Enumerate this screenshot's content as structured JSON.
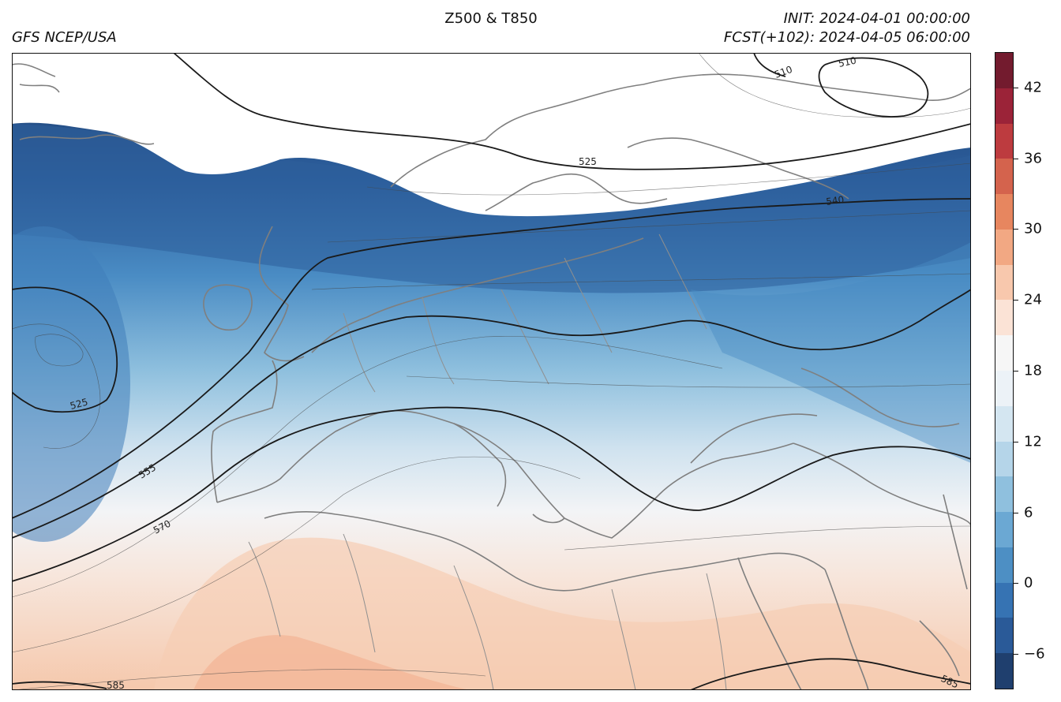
{
  "header": {
    "model": "GFS NCEP/USA",
    "title": "Z500 & T850",
    "init": "INIT: 2024-04-01 00:00:00",
    "forecast": "FCST(+102): 2024-04-05 06:00:00"
  },
  "colorbar": {
    "min": -9,
    "max": 45,
    "step": 1.5,
    "ticks": [
      "42",
      "36",
      "30",
      "24",
      "18",
      "12",
      "6",
      "0",
      "−6"
    ],
    "tick_values": [
      42,
      36,
      30,
      24,
      18,
      12,
      6,
      0,
      -6
    ],
    "colors_low_to_high": [
      "#1f3f6e",
      "#2a5a98",
      "#3673b3",
      "#4d8fc4",
      "#6ba8d3",
      "#8fc0de",
      "#b5d5e9",
      "#d4e6f1",
      "#ecf2f7",
      "#f6f6f6",
      "#fbe3d6",
      "#f8c8ad",
      "#f2a883",
      "#e7865f",
      "#d4634d",
      "#bd3b3f",
      "#9b2338",
      "#731b2e"
    ]
  },
  "contour_labels": {
    "c510a": "510",
    "c510b": "510",
    "c525a": "525",
    "c525b": "525",
    "c540": "540",
    "c555": "555",
    "c570": "570",
    "c585a": "585",
    "c585b": "585"
  }
}
